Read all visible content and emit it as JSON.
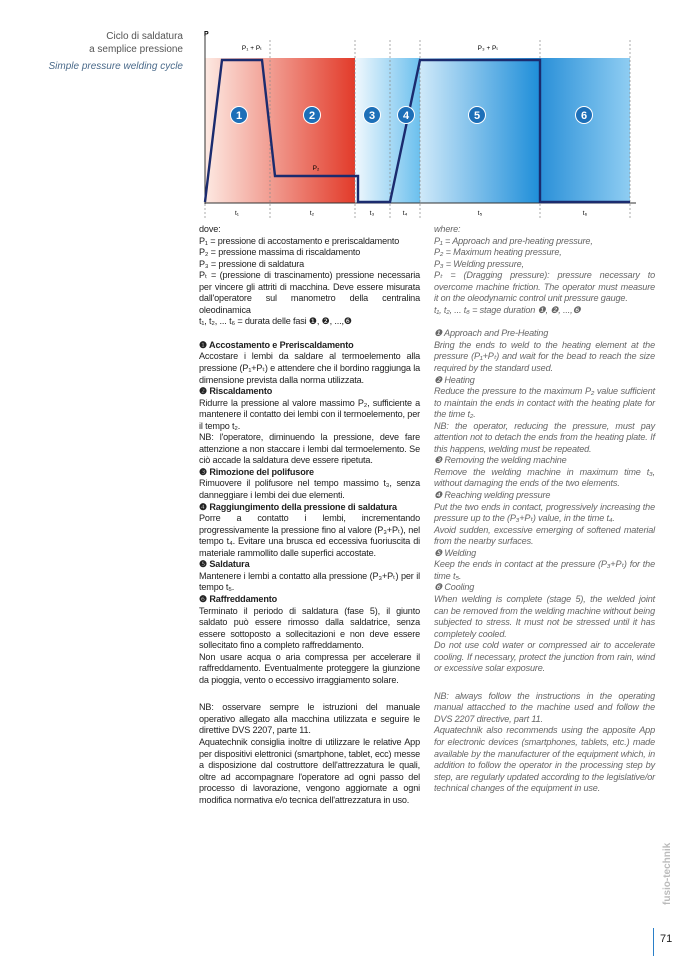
{
  "header": {
    "title_it": [
      "Ciclo di saldatura",
      "a semplice pressione"
    ],
    "title_en": "Simple pressure welding cycle"
  },
  "diagram": {
    "axis_label": "P",
    "top_labels": [
      "P₁ + Pₜ",
      "P₃ + Pₜ"
    ],
    "mid_label": "P₂",
    "phases": [
      "1",
      "2",
      "3",
      "4",
      "5",
      "6"
    ],
    "durations": [
      "t₁",
      "t₂",
      "t₃",
      "t₄",
      "t₅",
      "t₆"
    ]
  },
  "columns": [
    {
      "intro": [
        "dove:",
        "P₁ = pressione di accostamento e preriscaldamento",
        "P₂ = pressione massima di riscaldamento",
        "P₃ = pressione di saldatura",
        "Pₜ = (pressione di trascinamento) pressione necessaria per vincere gli attriti di macchina. Deve essere misurata dall'operatore sul manometro della centralina oleodinamica",
        "t₁, t₂, ... t₆ = durata delle fasi ❶, ❷, ...,❻"
      ],
      "sections": [
        {
          "heading": "❶ Accostamento e Preriscaldamento",
          "paragraphs": [
            "Accostare i lembi da saldare al termoelemento alla pressione (P₁+Pₜ) e attendere che il bordino raggiunga la dimensione prevista dalla norma utilizzata."
          ]
        },
        {
          "heading": "❷ Riscaldamento",
          "paragraphs": [
            "Ridurre la pressione al valore massimo P₂, sufficiente a mantenere il contatto dei lembi con il termoelemento, per il tempo t₂.",
            "NB: l'operatore, diminuendo la pressione, deve fare attenzione a non staccare i lembi dal termoelemento. Se ciò accade la saldatura deve essere ripetuta."
          ]
        },
        {
          "heading": "❸ Rimozione del polifusore",
          "paragraphs": [
            "Rimuovere il polifusore nel tempo massimo t₃, senza danneggiare i lembi dei due elementi."
          ]
        },
        {
          "heading": "❹ Raggiungimento della pressione di saldatura",
          "paragraphs": [
            "Porre a contatto i lembi, incrementando progressivamente la pressione fino al valore (P₃+Pₜ), nel tempo t₄. Evitare una brusca ed eccessiva fuoriuscita di materiale rammollito dalle superfici accostate."
          ]
        },
        {
          "heading": "❺ Saldatura",
          "paragraphs": [
            "Mantenere i lembi a contatto alla pressione (P₃+Pₜ) per il tempo t₅."
          ]
        },
        {
          "heading": "❻ Raffreddamento",
          "paragraphs": [
            "Terminato il periodo di saldatura (fase 5), il giunto saldato può essere rimosso dalla saldatrice, senza essere sottoposto a sollecitazioni e non deve essere sollecitato fino a completo raffreddamento.",
            "Non usare acqua o aria compressa per accelerare il raffreddamento. Eventualmente proteggere la giunzione da pioggia, vento o eccessivo irraggiamento solare."
          ]
        }
      ],
      "notes": [
        "NB: osservare sempre le istruzioni del manuale operativo allegato alla macchina utilizzata e seguire le direttive DVS 2207, parte 11.",
        "Aquatechnik consiglia inoltre di utilizzare le relative App per dispositivi elettronici (smartphone, tablet, ecc) messe a disposizione dal costruttore dell'attrezzatura le quali, oltre ad accompagnare l'operatore ad ogni passo del processo di lavorazione, vengono aggiornate a ogni modifica normativa e/o tecnica dell'attrezzatura in uso."
      ]
    },
    {
      "intro": [
        "where:",
        "P₁ = Approach and pre-heating pressure,",
        "P₂ = Maximum heating pressure,",
        "P₃ = Welding pressure,",
        "Pₜ = (Dragging pressure): pressure necessary to overcome machine friction. The operator must measure it on the oleodynamic control unit pressure gauge.",
        "t₁, t₂, ... t₆ = stage duration ❶, ❷, ...,❻"
      ],
      "sections": [
        {
          "heading": "❶ Approach and Pre-Heating",
          "paragraphs": [
            "Bring the ends to weld to the heating element at the pressure (P₁+Pₜ) and wait for the bead to reach the size required by the standard used."
          ]
        },
        {
          "heading": "❷ Heating",
          "paragraphs": [
            "Reduce the pressure to the maximum P₂ value sufficient to maintain the ends in contact with the heating plate for the time t₂.",
            "NB: the operator, reducing the pressure, must pay attention not to detach the ends from the heating plate. If this happens, welding must be repeated."
          ]
        },
        {
          "heading": "❸ Removing the welding machine",
          "paragraphs": [
            "Remove the welding machine in maximum time t₃, without damaging the ends of the two elements."
          ]
        },
        {
          "heading": "❹ Reaching welding pressure",
          "paragraphs": [
            "Put the two ends in contact, progressively increasing the pressure up to the (P₃+Pₜ) value, in the time t₄.",
            "Avoid sudden, excessive emerging of softened material from the nearby surfaces."
          ]
        },
        {
          "heading": "❺ Welding",
          "paragraphs": [
            "Keep the ends in contact at the pressure (P₃+Pₜ) for the time t₅."
          ]
        },
        {
          "heading": "❻ Cooling",
          "paragraphs": [
            "When welding is complete (stage 5), the welded joint can be removed from the welding machine without being subjected to stress. It must not be stressed until it has completely cooled.",
            "Do not use cold water or compressed air to accelerate cooling. If necessary, protect the junction from rain, wind or excessive solar exposure."
          ]
        }
      ],
      "notes": [
        "NB: always follow the instructions in the operating manual attacched to the machine used and follow the DVS 2207 directive, part 11.",
        "Aquatechnik also recommends using the apposite App for electronic devices (smartphones, tablets, etc.) made available by the manufacturer of the equipment which, in addition to follow the operator in the processing step by step, are regularly updated according to the legislative/or technical changes of the equipment in use."
      ]
    }
  ],
  "footer": {
    "brand": "fusio-technik",
    "page": "71"
  }
}
